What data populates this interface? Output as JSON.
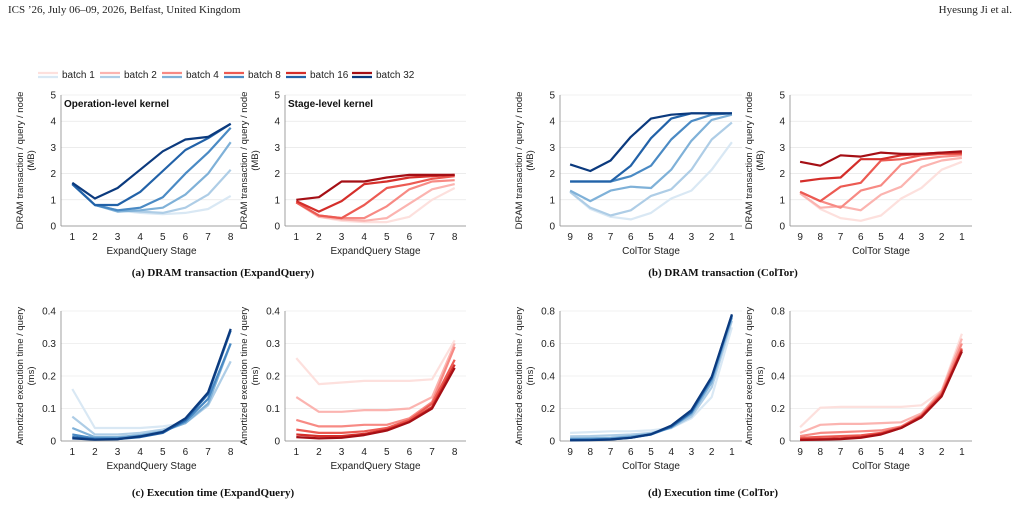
{
  "header": {
    "left": "ICS ’26, July 06–09, 2026, Belfast, United Kingdom",
    "right": "Hyesung Ji et al."
  },
  "legend": {
    "entries": [
      {
        "label": "batch 1",
        "blue": "#d9e8f4",
        "red": "#fde0dd"
      },
      {
        "label": "batch 2",
        "blue": "#aecde6",
        "red": "#fbb4b0"
      },
      {
        "label": "batch 4",
        "blue": "#7fb1d8",
        "red": "#f78a84"
      },
      {
        "label": "batch 8",
        "blue": "#4a8ac4",
        "red": "#ec5a52"
      },
      {
        "label": "batch 16",
        "blue": "#2262a8",
        "red": "#d42e2a"
      },
      {
        "label": "batch 32",
        "blue": "#0b3a7e",
        "red": "#a50f15"
      }
    ]
  },
  "captions": {
    "a": "(a) DRAM transaction (ExpandQuery)",
    "b": "(b) DRAM transaction (ColTor)",
    "c": "(c) Execution time (ExpandQuery)",
    "d": "(d) Execution time (ColTor)"
  },
  "chart_data": [
    {
      "id": "a1",
      "type": "line",
      "palette": "blue",
      "title": "Operation-level kernel",
      "xlabel": "ExpandQuery Stage",
      "ylabel": [
        "DRAM transaction / query / node",
        "(MB)"
      ],
      "x": [
        "1",
        "2",
        "3",
        "4",
        "5",
        "6",
        "7",
        "8"
      ],
      "ylim": [
        0,
        5
      ],
      "yticks": [
        "0",
        "1",
        "2",
        "3",
        "4",
        "5"
      ],
      "series": [
        {
          "name": "batch 1",
          "values": [
            1.6,
            0.8,
            0.6,
            0.5,
            0.45,
            0.5,
            0.65,
            1.15
          ]
        },
        {
          "name": "batch 2",
          "values": [
            1.6,
            0.8,
            0.6,
            0.55,
            0.5,
            0.7,
            1.2,
            2.15
          ]
        },
        {
          "name": "batch 4",
          "values": [
            1.6,
            0.8,
            0.55,
            0.6,
            0.7,
            1.2,
            2.0,
            3.2
          ]
        },
        {
          "name": "batch 8",
          "values": [
            1.6,
            0.8,
            0.6,
            0.7,
            1.1,
            2.0,
            2.8,
            3.75
          ]
        },
        {
          "name": "batch 16",
          "values": [
            1.6,
            0.8,
            0.8,
            1.3,
            2.1,
            2.9,
            3.35,
            3.9
          ]
        },
        {
          "name": "batch 32",
          "values": [
            1.65,
            1.05,
            1.45,
            2.15,
            2.85,
            3.3,
            3.4,
            3.9
          ]
        }
      ]
    },
    {
      "id": "a2",
      "type": "line",
      "palette": "red",
      "title": "Stage-level kernel",
      "xlabel": "ExpandQuery Stage",
      "ylabel": [
        "DRAM transaction / query / node",
        "(MB)"
      ],
      "x": [
        "1",
        "2",
        "3",
        "4",
        "5",
        "6",
        "7",
        "8"
      ],
      "ylim": [
        0,
        5
      ],
      "yticks": [
        "0",
        "1",
        "2",
        "3",
        "4",
        "5"
      ],
      "series": [
        {
          "name": "batch 1",
          "values": [
            0.9,
            0.35,
            0.2,
            0.15,
            0.15,
            0.35,
            1.0,
            1.45
          ]
        },
        {
          "name": "batch 2",
          "values": [
            0.9,
            0.35,
            0.25,
            0.2,
            0.3,
            0.85,
            1.4,
            1.6
          ]
        },
        {
          "name": "batch 4",
          "values": [
            0.9,
            0.4,
            0.3,
            0.3,
            0.75,
            1.4,
            1.7,
            1.75
          ]
        },
        {
          "name": "batch 8",
          "values": [
            0.9,
            0.4,
            0.3,
            0.8,
            1.45,
            1.6,
            1.8,
            1.9
          ]
        },
        {
          "name": "batch 16",
          "values": [
            0.95,
            0.55,
            0.95,
            1.6,
            1.7,
            1.85,
            1.9,
            1.95
          ]
        },
        {
          "name": "batch 32",
          "values": [
            1.0,
            1.1,
            1.7,
            1.7,
            1.85,
            1.95,
            1.95,
            1.95
          ]
        }
      ]
    },
    {
      "id": "b1",
      "type": "line",
      "palette": "blue",
      "title": "",
      "xlabel": "ColTor Stage",
      "ylabel": [
        "DRAM transaction / query / node",
        "(MB)"
      ],
      "x": [
        "9",
        "8",
        "7",
        "6",
        "5",
        "4",
        "3",
        "2",
        "1"
      ],
      "ylim": [
        0,
        5
      ],
      "yticks": [
        "0",
        "1",
        "2",
        "3",
        "4",
        "5"
      ],
      "series": [
        {
          "name": "batch 1",
          "values": [
            1.3,
            0.65,
            0.35,
            0.25,
            0.5,
            1.05,
            1.35,
            2.15,
            3.2
          ]
        },
        {
          "name": "batch 2",
          "values": [
            1.3,
            0.7,
            0.4,
            0.6,
            1.15,
            1.4,
            2.15,
            3.3,
            3.95
          ]
        },
        {
          "name": "batch 4",
          "values": [
            1.35,
            0.95,
            1.35,
            1.5,
            1.45,
            2.15,
            3.25,
            4.05,
            4.25
          ]
        },
        {
          "name": "batch 8",
          "values": [
            1.7,
            1.7,
            1.7,
            1.9,
            2.3,
            3.3,
            4.0,
            4.25,
            4.3
          ]
        },
        {
          "name": "batch 16",
          "values": [
            1.7,
            1.7,
            1.7,
            2.3,
            3.35,
            4.1,
            4.3,
            4.3,
            4.3
          ]
        },
        {
          "name": "batch 32",
          "values": [
            2.35,
            2.1,
            2.5,
            3.4,
            4.1,
            4.25,
            4.3,
            4.3,
            4.3
          ]
        }
      ]
    },
    {
      "id": "b2",
      "type": "line",
      "palette": "red",
      "title": "",
      "xlabel": "ColTor Stage",
      "ylabel": [
        "DRAM transaction / query / node",
        "(MB)"
      ],
      "x": [
        "9",
        "8",
        "7",
        "6",
        "5",
        "4",
        "3",
        "2",
        "1"
      ],
      "ylim": [
        0,
        5
      ],
      "yticks": [
        "0",
        "1",
        "2",
        "3",
        "4",
        "5"
      ],
      "series": [
        {
          "name": "batch 1",
          "values": [
            1.25,
            0.65,
            0.3,
            0.2,
            0.4,
            1.05,
            1.45,
            2.15,
            2.45
          ]
        },
        {
          "name": "batch 2",
          "values": [
            1.25,
            0.7,
            0.75,
            0.6,
            1.2,
            1.5,
            2.25,
            2.5,
            2.6
          ]
        },
        {
          "name": "batch 4",
          "values": [
            1.3,
            0.95,
            0.7,
            1.35,
            1.55,
            2.35,
            2.55,
            2.65,
            2.7
          ]
        },
        {
          "name": "batch 8",
          "values": [
            1.3,
            0.95,
            1.5,
            1.65,
            2.5,
            2.55,
            2.7,
            2.75,
            2.75
          ]
        },
        {
          "name": "batch 16",
          "values": [
            1.7,
            1.8,
            1.85,
            2.55,
            2.55,
            2.7,
            2.75,
            2.8,
            2.8
          ]
        },
        {
          "name": "batch 32",
          "values": [
            2.45,
            2.3,
            2.7,
            2.65,
            2.8,
            2.75,
            2.75,
            2.8,
            2.85
          ]
        }
      ]
    },
    {
      "id": "c1",
      "type": "line",
      "palette": "blue",
      "title": "",
      "xlabel": "ExpandQuery Stage",
      "ylabel": [
        "Amortized execution time / query",
        "(ms)"
      ],
      "x": [
        "1",
        "2",
        "3",
        "4",
        "5",
        "6",
        "7",
        "8"
      ],
      "ylim": [
        0,
        0.4
      ],
      "yticks": [
        "0",
        "0.1",
        "0.2",
        "0.3",
        "0.4"
      ],
      "series": [
        {
          "name": "batch 1",
          "values": [
            0.16,
            0.04,
            0.04,
            0.04,
            0.045,
            0.055,
            0.11,
            0.245
          ]
        },
        {
          "name": "batch 2",
          "values": [
            0.075,
            0.02,
            0.02,
            0.025,
            0.035,
            0.055,
            0.11,
            0.245
          ]
        },
        {
          "name": "batch 4",
          "values": [
            0.04,
            0.012,
            0.012,
            0.018,
            0.03,
            0.055,
            0.115,
            0.3
          ]
        },
        {
          "name": "batch 8",
          "values": [
            0.02,
            0.008,
            0.008,
            0.015,
            0.028,
            0.06,
            0.13,
            0.3
          ]
        },
        {
          "name": "batch 16",
          "values": [
            0.012,
            0.005,
            0.006,
            0.012,
            0.025,
            0.065,
            0.145,
            0.34
          ]
        },
        {
          "name": "batch 32",
          "values": [
            0.008,
            0.004,
            0.006,
            0.014,
            0.028,
            0.07,
            0.15,
            0.345
          ]
        }
      ]
    },
    {
      "id": "c2",
      "type": "line",
      "palette": "red",
      "title": "",
      "xlabel": "ExpandQuery Stage",
      "ylabel": [
        "Amortized execution time / query",
        "(ms)"
      ],
      "x": [
        "1",
        "2",
        "3",
        "4",
        "5",
        "6",
        "7",
        "8"
      ],
      "ylim": [
        0,
        0.4
      ],
      "yticks": [
        "0",
        "0.1",
        "0.2",
        "0.3",
        "0.4"
      ],
      "series": [
        {
          "name": "batch 1",
          "values": [
            0.255,
            0.175,
            0.18,
            0.185,
            0.185,
            0.185,
            0.19,
            0.31
          ]
        },
        {
          "name": "batch 2",
          "values": [
            0.135,
            0.09,
            0.09,
            0.095,
            0.095,
            0.1,
            0.135,
            0.3
          ]
        },
        {
          "name": "batch 4",
          "values": [
            0.065,
            0.045,
            0.045,
            0.05,
            0.05,
            0.07,
            0.12,
            0.29
          ]
        },
        {
          "name": "batch 8",
          "values": [
            0.035,
            0.025,
            0.025,
            0.03,
            0.04,
            0.065,
            0.115,
            0.25
          ]
        },
        {
          "name": "batch 16",
          "values": [
            0.02,
            0.015,
            0.015,
            0.022,
            0.035,
            0.06,
            0.105,
            0.235
          ]
        },
        {
          "name": "batch 32",
          "values": [
            0.012,
            0.008,
            0.01,
            0.018,
            0.032,
            0.058,
            0.1,
            0.225
          ]
        }
      ]
    },
    {
      "id": "d1",
      "type": "line",
      "palette": "blue",
      "title": "",
      "xlabel": "ColTor Stage",
      "ylabel": [
        "Amortized execution time / query",
        "(ms)"
      ],
      "x": [
        "9",
        "8",
        "7",
        "6",
        "5",
        "4",
        "3",
        "2",
        "1"
      ],
      "ylim": [
        0,
        0.8
      ],
      "yticks": [
        "0",
        "0.2",
        "0.4",
        "0.6",
        "0.8"
      ],
      "series": [
        {
          "name": "batch 1",
          "values": [
            0.05,
            0.055,
            0.06,
            0.06,
            0.065,
            0.08,
            0.14,
            0.27,
            0.7
          ]
        },
        {
          "name": "batch 2",
          "values": [
            0.028,
            0.03,
            0.035,
            0.04,
            0.05,
            0.08,
            0.15,
            0.33,
            0.74
          ]
        },
        {
          "name": "batch 4",
          "values": [
            0.015,
            0.017,
            0.02,
            0.028,
            0.045,
            0.085,
            0.165,
            0.36,
            0.76
          ]
        },
        {
          "name": "batch 8",
          "values": [
            0.009,
            0.01,
            0.013,
            0.022,
            0.04,
            0.085,
            0.175,
            0.38,
            0.77
          ]
        },
        {
          "name": "batch 16",
          "values": [
            0.006,
            0.007,
            0.01,
            0.02,
            0.04,
            0.09,
            0.18,
            0.39,
            0.775
          ]
        },
        {
          "name": "batch 32",
          "values": [
            0.004,
            0.005,
            0.009,
            0.02,
            0.042,
            0.095,
            0.19,
            0.395,
            0.78
          ]
        }
      ]
    },
    {
      "id": "d2",
      "type": "line",
      "palette": "red",
      "title": "",
      "xlabel": "ColTor Stage",
      "ylabel": [
        "Amortized execution time / query",
        "(ms)"
      ],
      "x": [
        "9",
        "8",
        "7",
        "6",
        "5",
        "4",
        "3",
        "2",
        "1"
      ],
      "ylim": [
        0,
        0.8
      ],
      "yticks": [
        "0",
        "0.2",
        "0.4",
        "0.6",
        "0.8"
      ],
      "series": [
        {
          "name": "batch 1",
          "values": [
            0.085,
            0.205,
            0.21,
            0.21,
            0.21,
            0.21,
            0.22,
            0.31,
            0.66
          ]
        },
        {
          "name": "batch 2",
          "values": [
            0.05,
            0.1,
            0.105,
            0.105,
            0.11,
            0.115,
            0.17,
            0.31,
            0.63
          ]
        },
        {
          "name": "batch 4",
          "values": [
            0.03,
            0.05,
            0.055,
            0.06,
            0.065,
            0.09,
            0.16,
            0.3,
            0.6
          ]
        },
        {
          "name": "batch 8",
          "values": [
            0.02,
            0.025,
            0.03,
            0.035,
            0.05,
            0.085,
            0.155,
            0.29,
            0.57
          ]
        },
        {
          "name": "batch 16",
          "values": [
            0.01,
            0.012,
            0.016,
            0.024,
            0.045,
            0.08,
            0.15,
            0.28,
            0.56
          ]
        },
        {
          "name": "batch 32",
          "values": [
            0.006,
            0.008,
            0.012,
            0.02,
            0.04,
            0.08,
            0.145,
            0.275,
            0.55
          ]
        }
      ]
    }
  ]
}
